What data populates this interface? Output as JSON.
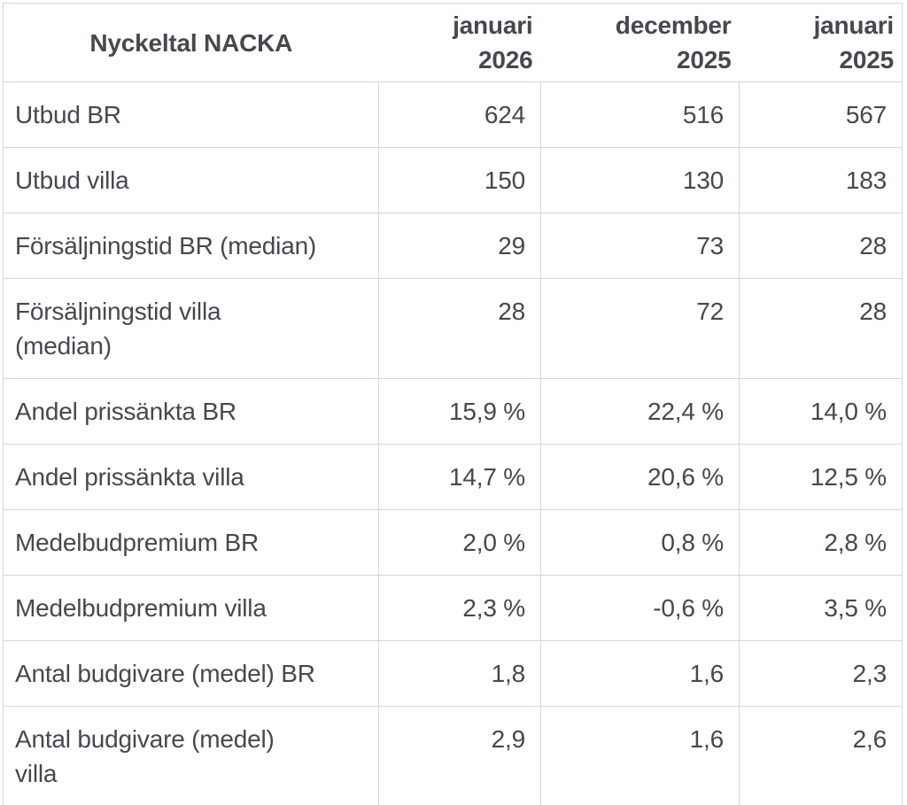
{
  "colors": {
    "background": "#ffffff",
    "text": "#45484c",
    "border": "#d5d5de",
    "divider_bar": "#c8c8d2"
  },
  "chart_data": {
    "type": "table",
    "title": "Nyckeltal NACKA",
    "columns": [
      "januari\n2026",
      "december\n2025",
      "januari\n2025"
    ],
    "rows": [
      {
        "label": "Utbud BR",
        "values": [
          "624",
          "516",
          "567"
        ]
      },
      {
        "label": "Utbud villa",
        "values": [
          "150",
          "130",
          "183"
        ]
      },
      {
        "label": "Försäljningstid BR (median)",
        "values": [
          "29",
          "73",
          "28"
        ]
      },
      {
        "label": "Försäljningstid villa\n(median)",
        "values": [
          "28",
          "72",
          "28"
        ]
      },
      {
        "label": "Andel prissänkta BR",
        "values": [
          "15,9 %",
          "22,4 %",
          "14,0 %"
        ]
      },
      {
        "label": "Andel prissänkta villa",
        "values": [
          "14,7 %",
          "20,6 %",
          "12,5 %"
        ]
      },
      {
        "label": "Medelbudpremium BR",
        "values": [
          "2,0 %",
          "0,8 %",
          "2,8 %"
        ]
      },
      {
        "label": "Medelbudpremium villa",
        "values": [
          "2,3 %",
          "-0,6 %",
          "3,5 %"
        ]
      },
      {
        "label": "Antal budgivare (medel) BR",
        "values": [
          "1,8",
          "1,6",
          "2,3"
        ]
      },
      {
        "label": "Antal budgivare (medel)\nvilla",
        "values": [
          "2,9",
          "1,6",
          "2,6"
        ]
      }
    ]
  }
}
